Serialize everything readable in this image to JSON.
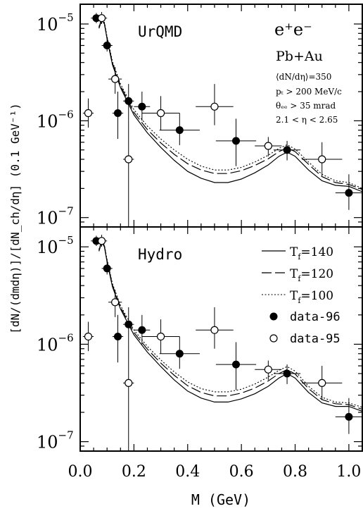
{
  "chart_data": {
    "type": "scatter",
    "xlabel": "M (GeV)",
    "ylabel": "[dN/(dmdη)]/[dN_ch/dη] (0.1 GeV⁻¹)",
    "xlim": [
      0.0,
      1.05
    ],
    "ylim": [
      8e-08,
      1.6e-05
    ],
    "y_scale": "log",
    "x_ticks": [
      "0.0",
      "0.2",
      "0.4",
      "0.6",
      "0.8",
      "1.0"
    ],
    "y_ticks": [
      {
        "value": 1e-07,
        "label_base": "10",
        "label_exp": "−7"
      },
      {
        "value": 1e-06,
        "label_base": "10",
        "label_exp": "−6"
      },
      {
        "value": 1e-05,
        "label_base": "10",
        "label_exp": "−5"
      }
    ],
    "panels": [
      {
        "model_label": "UrQMD",
        "annotations": {
          "reaction": "e⁺e⁻",
          "system": "Pb+Au",
          "mult": "⟨dN/dη⟩=350",
          "pt_cut": "pₜ > 200 MeV/c",
          "theta_cut": "θₑₑ > 35 mrad",
          "eta_cut": "2.1 < η < 2.65"
        },
        "series": [
          {
            "style": "solid",
            "x": [
              0.07,
              0.08,
              0.09,
              0.1,
              0.12,
              0.15,
              0.2,
              0.25,
              0.3,
              0.35,
              0.4,
              0.45,
              0.5,
              0.55,
              0.6,
              0.65,
              0.7,
              0.74,
              0.77,
              0.8,
              0.85,
              0.9,
              0.95,
              1.0,
              1.05
            ],
            "y": [
              9e-06,
              1.1e-05,
              1e-05,
              7e-06,
              3.8e-06,
              2.2e-06,
              1.15e-06,
              7.5e-07,
              5.3e-07,
              3.9e-07,
              3e-07,
              2.55e-07,
              2.3e-07,
              2.3e-07,
              2.5e-07,
              2.9e-07,
              3.5e-07,
              4.3e-07,
              4.75e-07,
              4.3e-07,
              3.1e-07,
              2.4e-07,
              2.15e-07,
              2.1e-07,
              1.85e-07
            ]
          },
          {
            "style": "dashed",
            "x": [
              0.07,
              0.08,
              0.09,
              0.1,
              0.12,
              0.15,
              0.2,
              0.25,
              0.3,
              0.35,
              0.4,
              0.45,
              0.5,
              0.55,
              0.6,
              0.65,
              0.7,
              0.74,
              0.77,
              0.8,
              0.85,
              0.9,
              0.95,
              1.0,
              1.05
            ],
            "y": [
              9.2e-06,
              1.12e-05,
              1.02e-05,
              7.2e-06,
              3.95e-06,
              2.3e-06,
              1.22e-06,
              8.1e-07,
              5.9e-07,
              4.5e-07,
              3.6e-07,
              3.1e-07,
              2.85e-07,
              2.85e-07,
              3.05e-07,
              3.45e-07,
              4.05e-07,
              4.8e-07,
              5.25e-07,
              4.8e-07,
              3.55e-07,
              2.65e-07,
              2.3e-07,
              2.2e-07,
              1.95e-07
            ]
          },
          {
            "style": "dotted",
            "x": [
              0.07,
              0.08,
              0.09,
              0.1,
              0.12,
              0.15,
              0.2,
              0.25,
              0.3,
              0.35,
              0.4,
              0.45,
              0.5,
              0.55,
              0.6,
              0.65,
              0.7,
              0.74,
              0.77,
              0.8,
              0.85,
              0.9,
              0.95,
              1.0,
              1.05
            ],
            "y": [
              9.4e-06,
              1.14e-05,
              1.04e-05,
              7.4e-06,
              4.1e-06,
              2.4e-06,
              1.3e-06,
              8.8e-07,
              6.5e-07,
              5e-07,
              4e-07,
              3.4e-07,
              3.1e-07,
              3.1e-07,
              3.3e-07,
              3.75e-07,
              4.4e-07,
              5.2e-07,
              5.65e-07,
              5.1e-07,
              3.75e-07,
              2.8e-07,
              2.4e-07,
              2.3e-07,
              2e-07
            ]
          },
          {
            "style": "filled",
            "points": [
              {
                "x": 0.06,
                "y": 1.15e-05,
                "xerr": 0.02,
                "ylo": 1.02e-05,
                "yhi": 1.3e-05
              },
              {
                "x": 0.1,
                "y": 6e-06,
                "xerr": 0.02,
                "ylo": 5.2e-06,
                "yhi": 7e-06
              },
              {
                "x": 0.14,
                "y": 1.2e-06,
                "xerr": 0.02,
                "ylo": 6.5e-07,
                "yhi": 2e-06
              },
              {
                "x": 0.18,
                "y": 1.6e-06,
                "xerr": 0.02,
                "ylo": 1e-06,
                "yhi": 2.4e-06
              },
              {
                "x": 0.23,
                "y": 1.4e-06,
                "xerr": 0.03,
                "ylo": 1e-06,
                "yhi": 2e-06
              },
              {
                "x": 0.37,
                "y": 8e-07,
                "xerr": 0.075,
                "ylo": 5.6e-07,
                "yhi": 1.2e-06
              },
              {
                "x": 0.58,
                "y": 6.2e-07,
                "xerr": 0.075,
                "ylo": 3.4e-07,
                "yhi": 1.05e-06
              },
              {
                "x": 0.77,
                "y": 5e-07,
                "xerr": 0.05,
                "ylo": 3.9e-07,
                "yhi": 6.2e-07
              },
              {
                "x": 1.0,
                "y": 1.8e-07,
                "xerr": 0.05,
                "ylo": 1.2e-07,
                "yhi": 2.8e-07
              }
            ]
          },
          {
            "style": "open",
            "points": [
              {
                "x": 0.03,
                "y": 1.2e-06,
                "xerr": 0.02,
                "ylo": 8.5e-07,
                "yhi": 1.7e-06
              },
              {
                "x": 0.08,
                "y": 1.15e-05,
                "xerr": 0.02,
                "ylo": 1e-05,
                "yhi": 1.33e-05
              },
              {
                "x": 0.13,
                "y": 2.7e-06,
                "xerr": 0.025,
                "ylo": 1.9e-06,
                "yhi": 3.6e-06
              },
              {
                "x": 0.18,
                "y": 4e-07,
                "xerr": 0.02,
                "ylo": 8e-08,
                "yhi": 1e-06
              },
              {
                "x": 0.3,
                "y": 1.2e-06,
                "xerr": 0.07,
                "ylo": 8e-07,
                "yhi": 1.8e-06
              },
              {
                "x": 0.5,
                "y": 1.4e-06,
                "xerr": 0.07,
                "ylo": 9e-07,
                "yhi": 2.4e-06
              },
              {
                "x": 0.7,
                "y": 5.5e-07,
                "xerr": 0.05,
                "ylo": 4.3e-07,
                "yhi": 6.8e-07
              },
              {
                "x": 0.9,
                "y": 4e-07,
                "xerr": 0.075,
                "ylo": 2.7e-07,
                "yhi": 6e-07
              }
            ]
          }
        ]
      },
      {
        "model_label": "Hydro",
        "series": [
          {
            "name": "T_f=140",
            "name_base": "T",
            "name_sub": "f",
            "name_rest": "=140",
            "style": "solid",
            "x": [
              0.07,
              0.08,
              0.09,
              0.1,
              0.12,
              0.15,
              0.2,
              0.25,
              0.3,
              0.35,
              0.4,
              0.45,
              0.5,
              0.55,
              0.6,
              0.65,
              0.7,
              0.74,
              0.77,
              0.8,
              0.85,
              0.9,
              0.95,
              1.0,
              1.05
            ],
            "y": [
              9e-06,
              1.12e-05,
              1e-05,
              7e-06,
              3.9e-06,
              2.3e-06,
              1.25e-06,
              8.3e-07,
              5.9e-07,
              4.3e-07,
              3.3e-07,
              2.8e-07,
              2.55e-07,
              2.55e-07,
              2.75e-07,
              3.1e-07,
              3.7e-07,
              4.5e-07,
              5e-07,
              4.5e-07,
              3.2e-07,
              2.5e-07,
              2.3e-07,
              2.3e-07,
              2.05e-07
            ]
          },
          {
            "name": "T_f=120",
            "name_base": "T",
            "name_sub": "f",
            "name_rest": "=120",
            "style": "dashed",
            "x": [
              0.07,
              0.08,
              0.09,
              0.1,
              0.12,
              0.15,
              0.2,
              0.25,
              0.3,
              0.35,
              0.4,
              0.45,
              0.5,
              0.55,
              0.6,
              0.65,
              0.7,
              0.74,
              0.77,
              0.8,
              0.85,
              0.9,
              0.95,
              1.0,
              1.05
            ],
            "y": [
              9.2e-06,
              1.14e-05,
              1.02e-05,
              7.2e-06,
              4.05e-06,
              2.4e-06,
              1.32e-06,
              8.9e-07,
              6.4e-07,
              4.8e-07,
              3.75e-07,
              3.2e-07,
              2.95e-07,
              2.95e-07,
              3.15e-07,
              3.55e-07,
              4.2e-07,
              5e-07,
              5.5e-07,
              4.95e-07,
              3.5e-07,
              2.7e-07,
              2.45e-07,
              2.4e-07,
              2.15e-07
            ]
          },
          {
            "name": "T_f=100",
            "name_base": "T",
            "name_sub": "f",
            "name_rest": "=100",
            "style": "dotted",
            "x": [
              0.07,
              0.08,
              0.09,
              0.1,
              0.12,
              0.15,
              0.2,
              0.25,
              0.3,
              0.35,
              0.4,
              0.45,
              0.5,
              0.55,
              0.6,
              0.65,
              0.7,
              0.74,
              0.77,
              0.8,
              0.85,
              0.9,
              0.95,
              1.0,
              1.05
            ],
            "y": [
              9.4e-06,
              1.16e-05,
              1.04e-05,
              7.4e-06,
              4.2e-06,
              2.5e-06,
              1.4e-06,
              9.5e-07,
              6.9e-07,
              5.2e-07,
              4.1e-07,
              3.5e-07,
              3.25e-07,
              3.25e-07,
              3.45e-07,
              3.9e-07,
              4.6e-07,
              5.4e-07,
              5.9e-07,
              5.3e-07,
              3.7e-07,
              2.85e-07,
              2.55e-07,
              2.5e-07,
              2.25e-07
            ]
          },
          {
            "name": "data-96",
            "style": "filled",
            "points": [
              {
                "x": 0.06,
                "y": 1.15e-05,
                "xerr": 0.02,
                "ylo": 1.02e-05,
                "yhi": 1.3e-05
              },
              {
                "x": 0.1,
                "y": 6e-06,
                "xerr": 0.02,
                "ylo": 5.2e-06,
                "yhi": 7e-06
              },
              {
                "x": 0.14,
                "y": 1.2e-06,
                "xerr": 0.02,
                "ylo": 6.5e-07,
                "yhi": 2e-06
              },
              {
                "x": 0.18,
                "y": 1.6e-06,
                "xerr": 0.02,
                "ylo": 1e-06,
                "yhi": 2.4e-06
              },
              {
                "x": 0.23,
                "y": 1.4e-06,
                "xerr": 0.03,
                "ylo": 1e-06,
                "yhi": 2e-06
              },
              {
                "x": 0.37,
                "y": 8e-07,
                "xerr": 0.075,
                "ylo": 5.6e-07,
                "yhi": 1.2e-06
              },
              {
                "x": 0.58,
                "y": 6.2e-07,
                "xerr": 0.075,
                "ylo": 3.4e-07,
                "yhi": 1.05e-06
              },
              {
                "x": 0.77,
                "y": 5e-07,
                "xerr": 0.05,
                "ylo": 3.9e-07,
                "yhi": 6.2e-07
              },
              {
                "x": 1.0,
                "y": 1.8e-07,
                "xerr": 0.05,
                "ylo": 1.2e-07,
                "yhi": 2.8e-07
              }
            ]
          },
          {
            "name": "data-95",
            "style": "open",
            "points": [
              {
                "x": 0.03,
                "y": 1.2e-06,
                "xerr": 0.02,
                "ylo": 8.5e-07,
                "yhi": 1.7e-06
              },
              {
                "x": 0.08,
                "y": 1.15e-05,
                "xerr": 0.02,
                "ylo": 1e-05,
                "yhi": 1.33e-05
              },
              {
                "x": 0.13,
                "y": 2.7e-06,
                "xerr": 0.025,
                "ylo": 1.9e-06,
                "yhi": 3.6e-06
              },
              {
                "x": 0.18,
                "y": 4e-07,
                "xerr": 0.02,
                "ylo": 8e-08,
                "yhi": 1e-06
              },
              {
                "x": 0.3,
                "y": 1.2e-06,
                "xerr": 0.07,
                "ylo": 8e-07,
                "yhi": 1.8e-06
              },
              {
                "x": 0.5,
                "y": 1.4e-06,
                "xerr": 0.07,
                "ylo": 9e-07,
                "yhi": 2.4e-06
              },
              {
                "x": 0.7,
                "y": 5.5e-07,
                "xerr": 0.05,
                "ylo": 4.3e-07,
                "yhi": 6.8e-07
              },
              {
                "x": 0.9,
                "y": 4e-07,
                "xerr": 0.075,
                "ylo": 2.7e-07,
                "yhi": 6e-07
              }
            ]
          }
        ]
      }
    ]
  }
}
